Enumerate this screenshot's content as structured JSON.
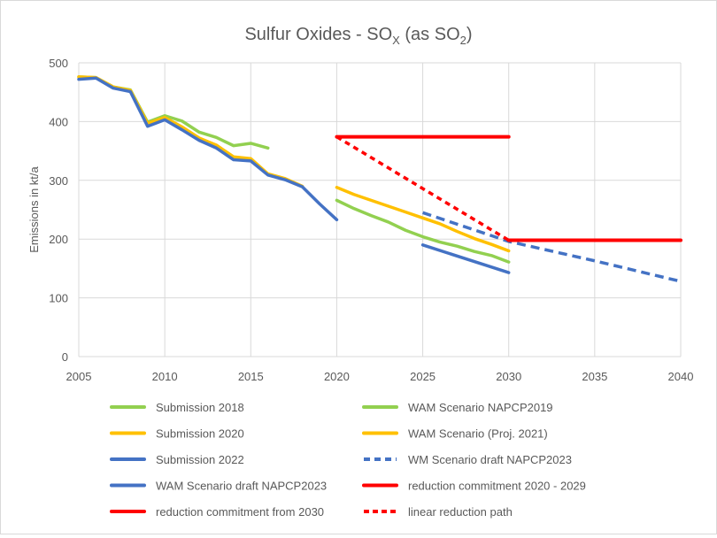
{
  "chart_data": {
    "type": "line",
    "title_parts": [
      "Sulfur Oxides - SO",
      "X",
      " (as SO",
      "2",
      ")"
    ],
    "xlabel": "",
    "ylabel": "Emissions in kt/a",
    "xlim": [
      2005,
      2040
    ],
    "ylim": [
      0,
      500
    ],
    "xticks": [
      "2005",
      "2010",
      "2015",
      "2020",
      "2025",
      "2030",
      "2035",
      "2040"
    ],
    "yticks": [
      "0",
      "100",
      "200",
      "300",
      "400",
      "500"
    ],
    "grid": true,
    "legend_position": "bottom",
    "series": [
      {
        "name": "Submission 2018",
        "color": "#92D050",
        "dash": false,
        "x": [
          2005,
          2006,
          2007,
          2008,
          2009,
          2010,
          2011,
          2012,
          2013,
          2014,
          2015,
          2016
        ],
        "y": [
          476,
          475,
          459,
          454,
          399,
          410,
          401,
          382,
          373,
          359,
          363,
          355
        ]
      },
      {
        "name": "WAM Scenario NAPCP2019",
        "color": "#92D050",
        "dash": false,
        "x": [
          2020,
          2021,
          2022,
          2023,
          2024,
          2025,
          2026,
          2027,
          2028,
          2029,
          2030
        ],
        "y": [
          266,
          252,
          240,
          229,
          215,
          204,
          195,
          188,
          179,
          172,
          161
        ]
      },
      {
        "name": "Submission 2020",
        "color": "#FFC000",
        "dash": false,
        "x": [
          2005,
          2006,
          2007,
          2008,
          2009,
          2010,
          2011,
          2012,
          2013,
          2014,
          2015,
          2016,
          2017,
          2018
        ],
        "y": [
          476,
          475,
          459,
          453,
          397,
          407,
          391,
          372,
          360,
          340,
          337,
          311,
          303,
          290
        ]
      },
      {
        "name": "WAM Scenario (Proj. 2021)",
        "color": "#FFC000",
        "dash": false,
        "x": [
          2020,
          2021,
          2022,
          2023,
          2024,
          2025,
          2026,
          2027,
          2028,
          2029,
          2030
        ],
        "y": [
          288,
          276,
          266,
          256,
          246,
          236,
          226,
          213,
          201,
          191,
          180
        ]
      },
      {
        "name": "Submission 2022",
        "color": "#4472C4",
        "dash": false,
        "x": [
          2005,
          2006,
          2007,
          2008,
          2009,
          2010,
          2011,
          2012,
          2013,
          2014,
          2015,
          2016,
          2017,
          2018,
          2019,
          2020
        ],
        "y": [
          472,
          474,
          457,
          451,
          392,
          403,
          386,
          368,
          355,
          335,
          333,
          309,
          301,
          289,
          260,
          233
        ]
      },
      {
        "name": "WM Scenario draft NAPCP2023",
        "color": "#4472C4",
        "dash": true,
        "x": [
          2025,
          2030,
          2035,
          2040
        ],
        "y": [
          245,
          196,
          163,
          128
        ]
      },
      {
        "name": "WAM Scenario draft NAPCP2023",
        "color": "#4472C4",
        "dash": false,
        "x": [
          2025,
          2030
        ],
        "y": [
          190,
          143
        ]
      },
      {
        "name": "reduction commitment 2020 - 2029",
        "color": "#FF0000",
        "dash": false,
        "x": [
          2020,
          2030
        ],
        "y": [
          374,
          374
        ]
      },
      {
        "name": "reduction commitment from 2030",
        "color": "#FF0000",
        "dash": false,
        "x": [
          2030,
          2040
        ],
        "y": [
          198,
          198
        ]
      },
      {
        "name": "linear reduction path",
        "color": "#FF0000",
        "dash": true,
        "x": [
          2020,
          2030
        ],
        "y": [
          374,
          198
        ]
      }
    ]
  }
}
